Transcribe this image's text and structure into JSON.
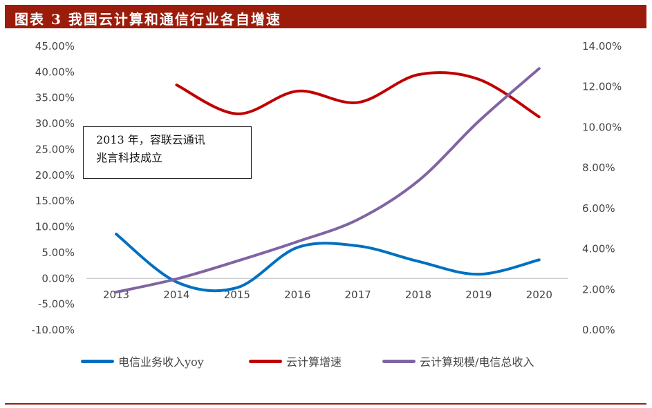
{
  "title": "图表 3 我国云计算和通信行业各自增速",
  "annotation": [
    "2013 年，容联云通讯",
    "兆言科技成立"
  ],
  "chart_data": {
    "type": "line",
    "categories": [
      "2013",
      "2014",
      "2015",
      "2016",
      "2017",
      "2018",
      "2019",
      "2020"
    ],
    "y_left": {
      "ylim": [
        -10,
        45
      ],
      "ticks": [
        "45.00%",
        "40.00%",
        "35.00%",
        "30.00%",
        "25.00%",
        "20.00%",
        "15.00%",
        "10.00%",
        "5.00%",
        "0.00%",
        "-5.00%",
        "-10.00%"
      ]
    },
    "y_right": {
      "ylim": [
        0,
        14
      ],
      "ticks": [
        "14.00%",
        "12.00%",
        "10.00%",
        "8.00%",
        "6.00%",
        "4.00%",
        "2.00%",
        "0.00%"
      ]
    },
    "grid": false,
    "legend": "bottom",
    "series": [
      {
        "name": "电信业务收入yoy",
        "axis": "left",
        "color": "#0070c0",
        "values": [
          8.6,
          -0.7,
          -1.8,
          6.0,
          6.3,
          3.3,
          0.8,
          3.6
        ]
      },
      {
        "name": "云计算增速",
        "axis": "left",
        "color": "#c00000",
        "values": [
          null,
          37.5,
          31.9,
          36.3,
          34.1,
          39.5,
          38.6,
          31.3
        ]
      },
      {
        "name": "云计算规模/电信总收入",
        "axis": "right",
        "color": "#8064a2",
        "values": [
          1.87,
          2.52,
          3.4,
          4.36,
          5.45,
          7.36,
          10.3,
          12.9
        ]
      }
    ]
  }
}
